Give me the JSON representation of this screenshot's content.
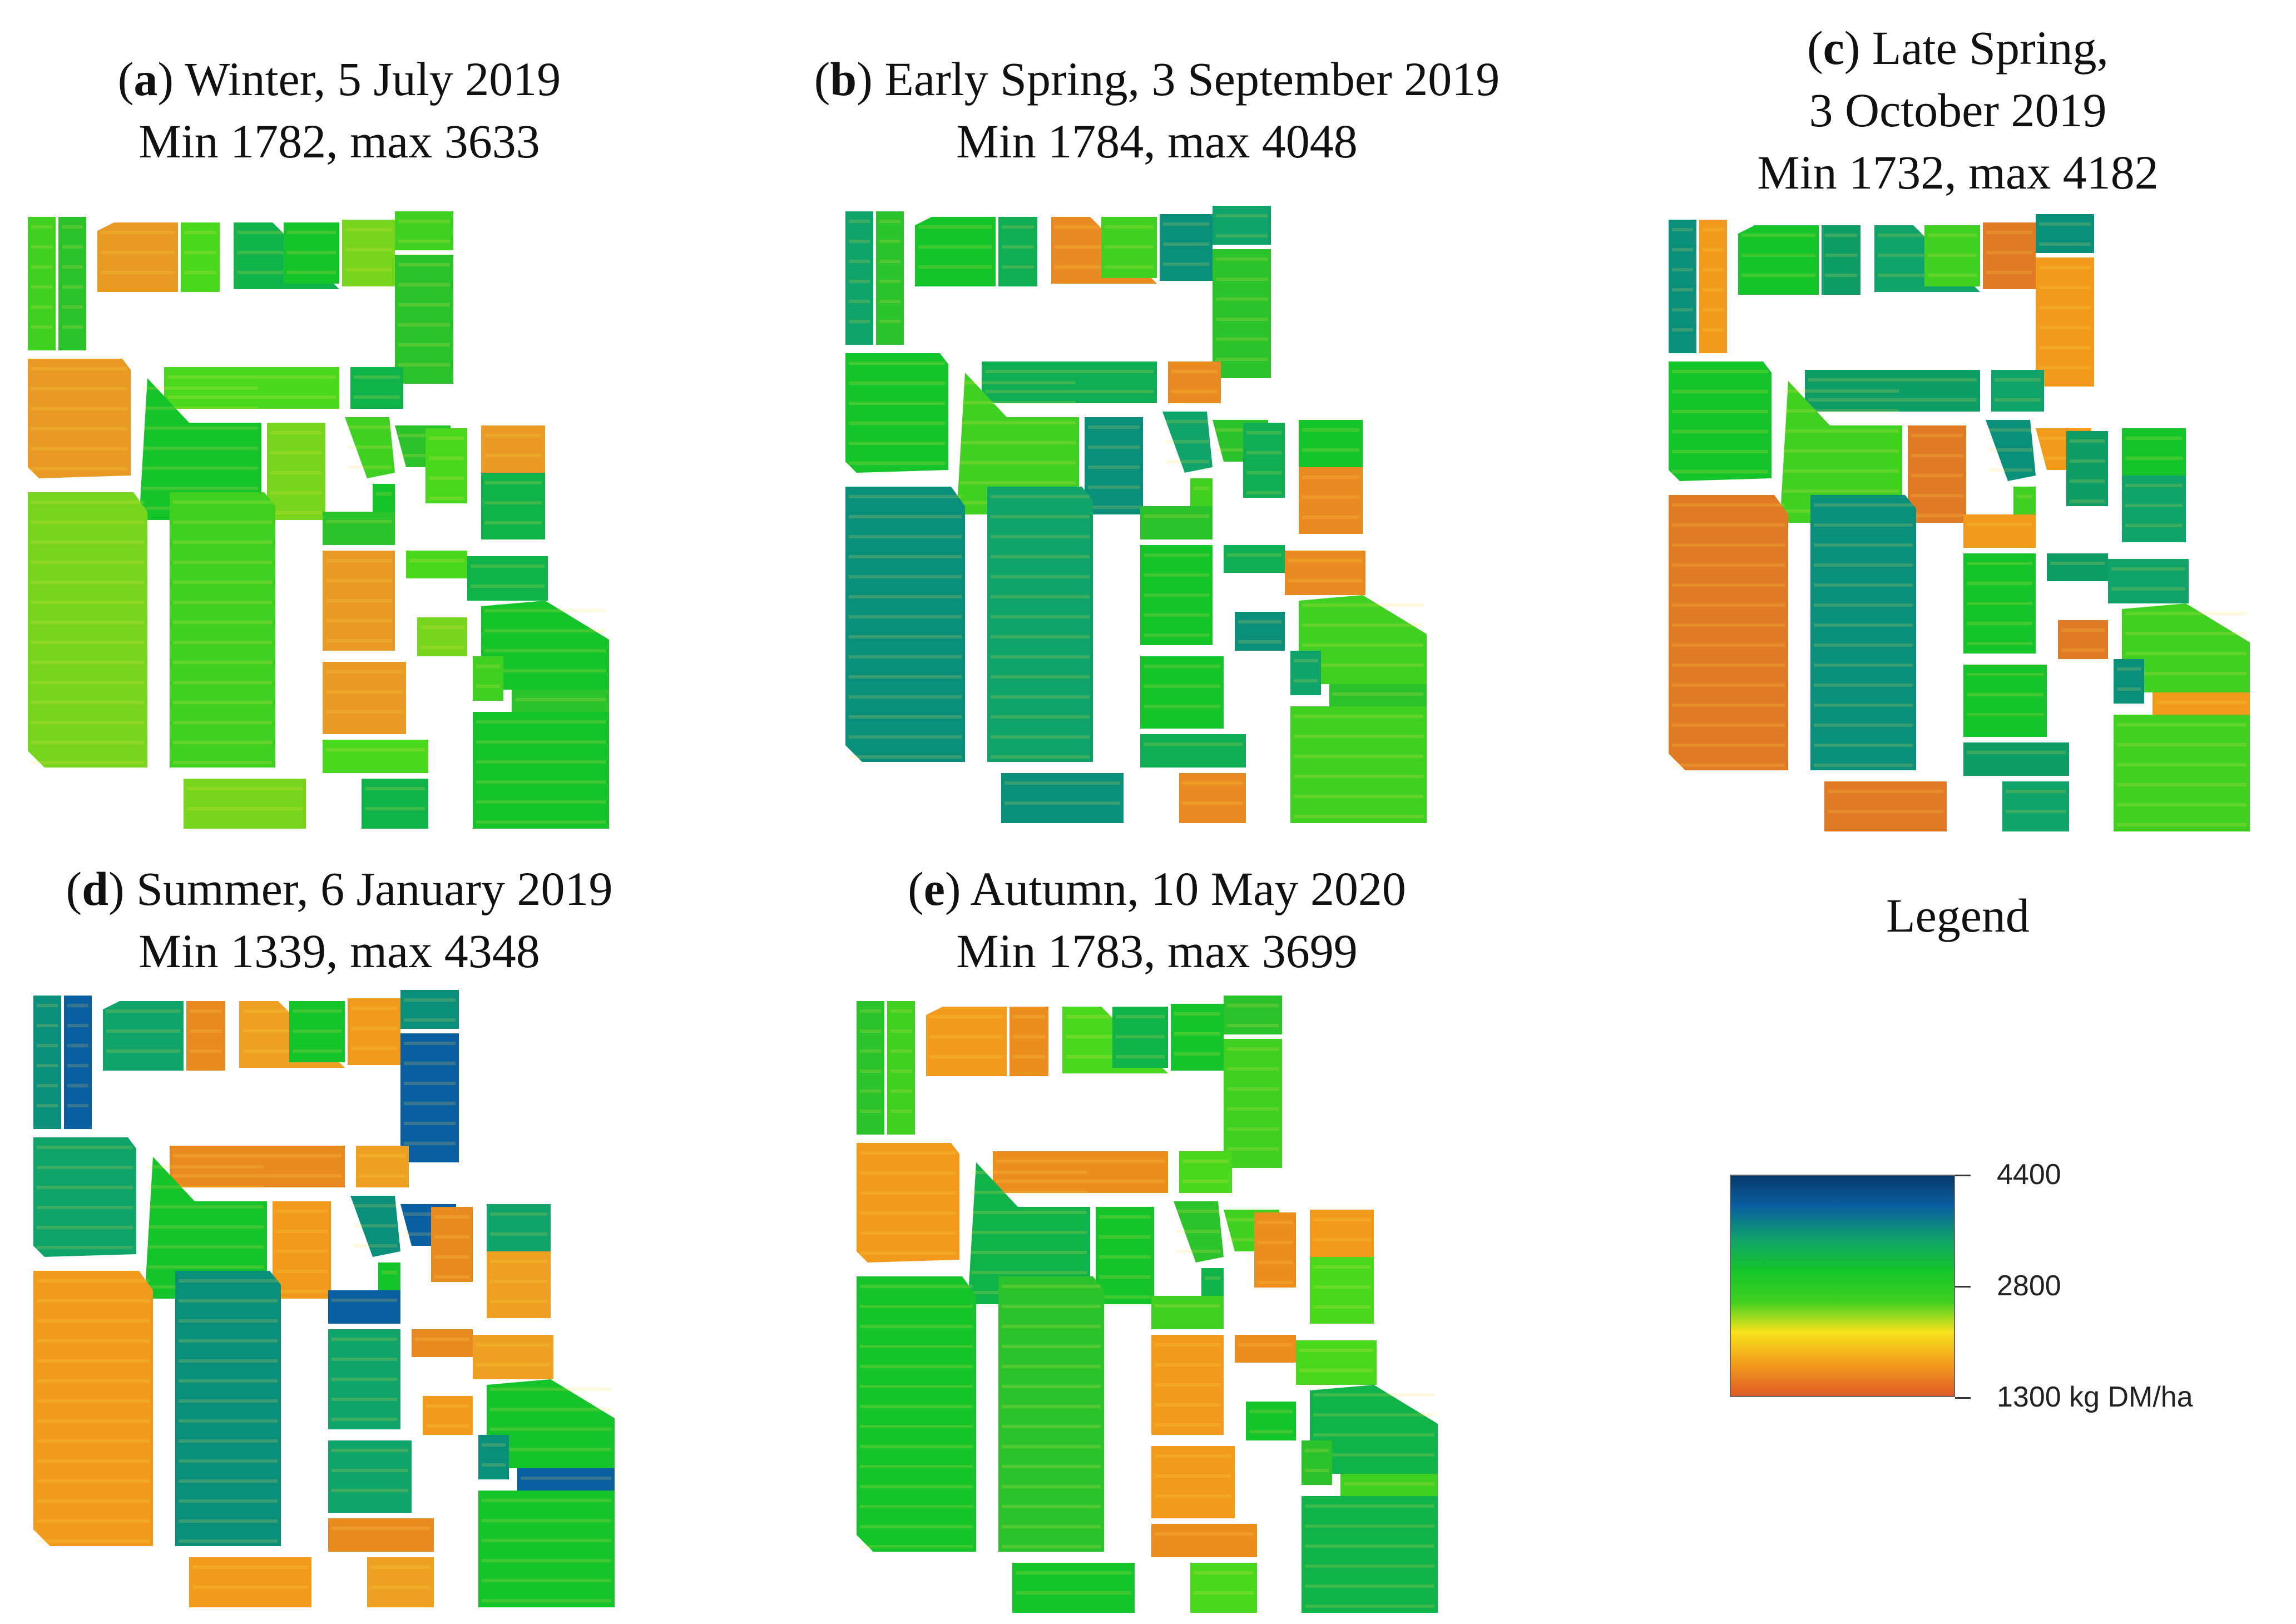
{
  "panels": [
    {
      "letter": "a",
      "season_date": "Winter, 5 July 2019",
      "range_label": "Min 1782, max 3633",
      "min": 1782,
      "max": 3633
    },
    {
      "letter": "b",
      "season_date": "Early Spring, 3 September 2019",
      "range_label": "Min 1784, max 4048",
      "min": 1784,
      "max": 4048
    },
    {
      "letter": "c",
      "season_line1": "Late Spring,",
      "season_line2": "3 October 2019",
      "range_label": "Min 1732, max 4182",
      "min": 1732,
      "max": 4182
    },
    {
      "letter": "d",
      "season_date": "Summer, 6 January 2019",
      "range_label": "Min 1339, max 4348",
      "min": 1339,
      "max": 4348
    },
    {
      "letter": "e",
      "season_date": "Autumn, 10 May 2020",
      "range_label": "Min 1783, max 3699",
      "min": 1783,
      "max": 3699
    }
  ],
  "legend": {
    "title": "Legend",
    "max_label": "4400",
    "mid_label": "2800",
    "min_label": "1300 kg DM/ha",
    "min_value": 1300,
    "mid_value": 2800,
    "max_value": 4400,
    "colors": [
      "#e05a28",
      "#f29a1c",
      "#f7e21c",
      "#3fd021",
      "#14c42a",
      "#10a36a",
      "#0a5fa0",
      "#073a6b"
    ]
  }
}
